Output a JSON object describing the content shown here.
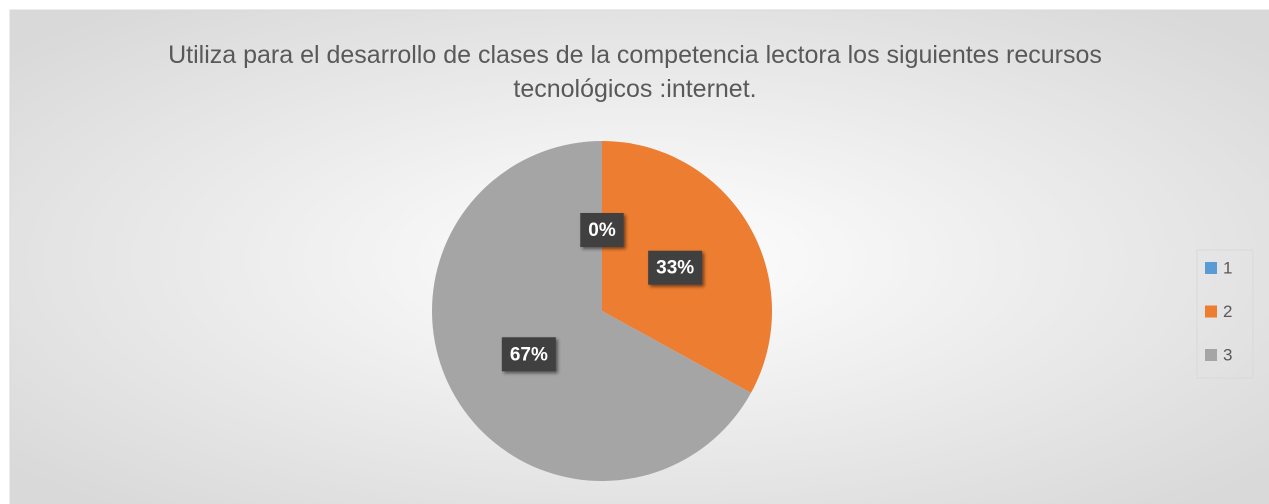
{
  "chart_data": {
    "type": "pie",
    "title": "Utiliza para el desarrollo de clases de la competencia lectora  los siguientes recursos tecnológicos :internet.",
    "categories": [
      "1",
      "2",
      "3"
    ],
    "values": [
      0,
      33,
      67
    ],
    "value_labels": [
      "0%",
      "33%",
      "67%"
    ],
    "colors": [
      "#5b9bd5",
      "#ed7d31",
      "#a5a5a5"
    ],
    "legend": "right"
  }
}
